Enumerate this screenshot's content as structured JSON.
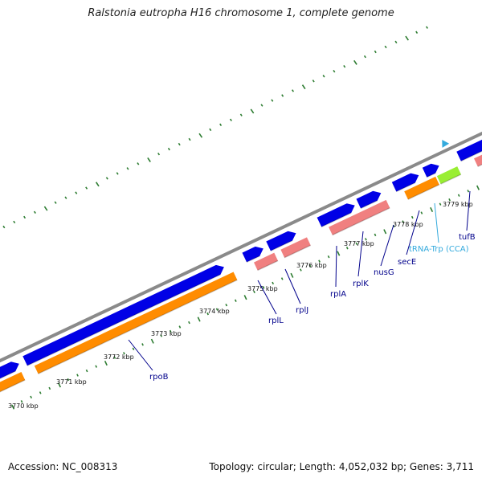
{
  "title": "Ralstonia eutropha H16 chromosome 1, complete genome",
  "accession": "Accession: NC_008313",
  "summary": "Topology: circular; Length: 4,052,032 bp; Genes: 3,711",
  "colors": {
    "backbone": "#8a8a8a",
    "cds_forward": "#0000e6",
    "gene_forward": "#ff8c00",
    "gene_forward_light": "#f08080",
    "trna": "#99ee33",
    "trna_label": "#33aadd",
    "label": "#00008b",
    "tick_major": "#2e7d32",
    "tick_minor": "#2e7d32"
  },
  "ticks": [
    {
      "label": "3770 kbp"
    },
    {
      "label": "3771 kbp"
    },
    {
      "label": "3772 kbp"
    },
    {
      "label": "3773 kbp"
    },
    {
      "label": "3774 kbp"
    },
    {
      "label": "3775 kbp"
    },
    {
      "label": "3776 kbp"
    },
    {
      "label": "3777 kbp"
    },
    {
      "label": "3778 kbp"
    },
    {
      "label": "3779 kbp"
    }
  ],
  "genes": [
    {
      "label": "rpoB"
    },
    {
      "label": "rplL"
    },
    {
      "label": "rplJ"
    },
    {
      "label": "rplA"
    },
    {
      "label": "rplK"
    },
    {
      "label": "nusG"
    },
    {
      "label": "secE"
    },
    {
      "label": "tRNA-Trp (CCA)"
    },
    {
      "label": "tufB"
    }
  ]
}
